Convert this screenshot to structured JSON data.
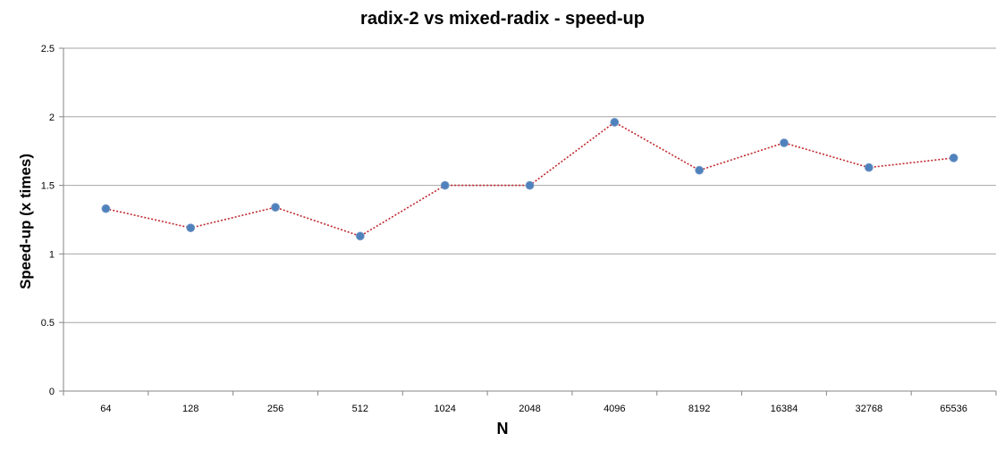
{
  "chart_data": {
    "type": "line",
    "title": "radix-2 vs mixed-radix - speed-up",
    "xlabel": "N",
    "ylabel": "Speed-up  (x times)",
    "categories": [
      "64",
      "128",
      "256",
      "512",
      "1024",
      "2048",
      "4096",
      "8192",
      "16384",
      "32768",
      "65536"
    ],
    "series": [
      {
        "values": [
          1.33,
          1.19,
          1.34,
          1.13,
          1.5,
          1.5,
          1.96,
          1.61,
          1.81,
          1.63,
          1.7
        ]
      }
    ],
    "ylim": [
      0,
      2.5
    ],
    "yticks": [
      "0",
      "0.5",
      "1",
      "1.5",
      "2",
      "2.5"
    ],
    "grid": true,
    "legend": "none",
    "colors": {
      "line": "#c0272d",
      "marker": "#4f81bd",
      "grid": "#a6a6a6",
      "axis": "#868686"
    }
  }
}
